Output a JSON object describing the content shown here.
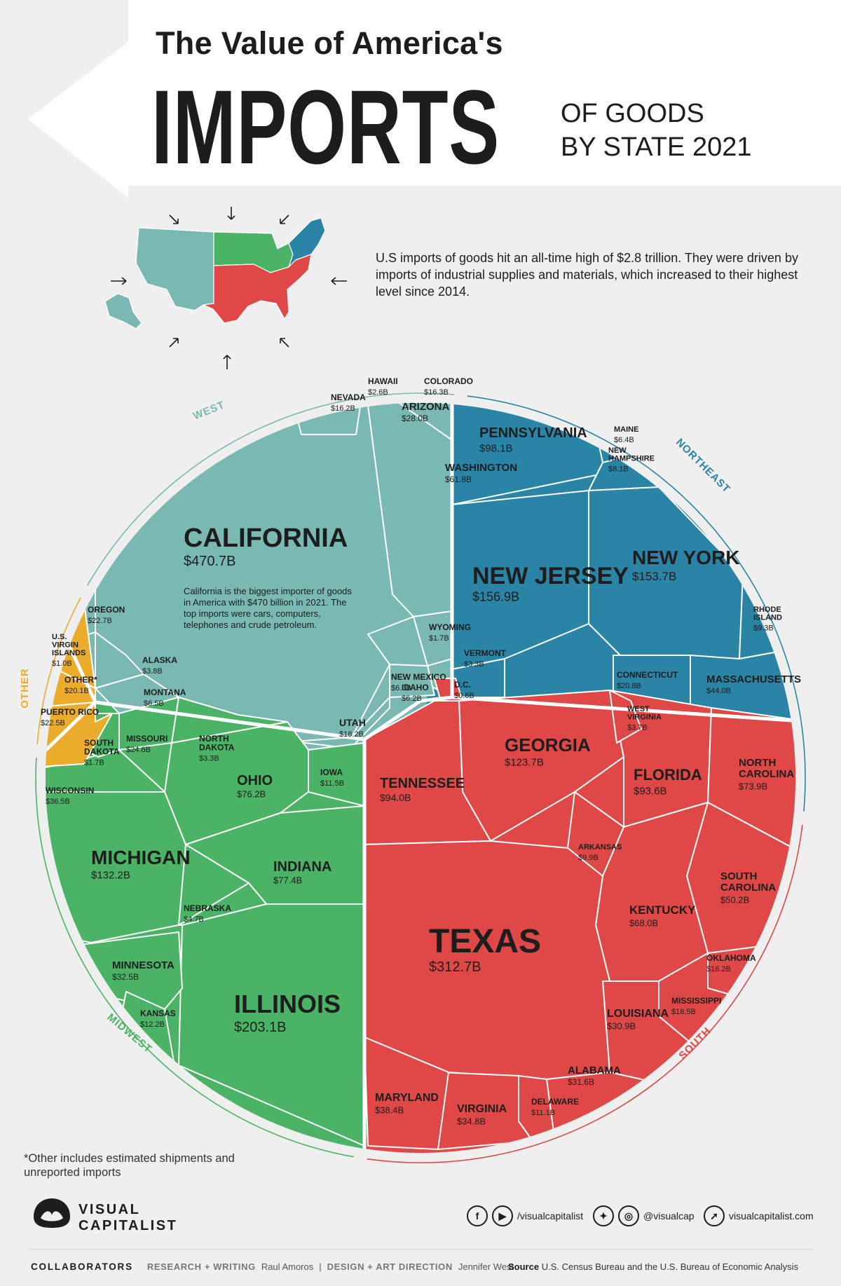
{
  "header": {
    "line1": "The Value of America's",
    "big": "IMPORTS",
    "sub1": "OF GOODS",
    "sub2": "BY STATE 2021"
  },
  "intro": {
    "text": "U.S imports of goods hit an all-time high of $2.8 trillion. They were driven by imports of industrial supplies and materials, which increased to their highest level since 2014."
  },
  "colors": {
    "west": "#7ab8b3",
    "northeast": "#2a84a6",
    "midwest": "#4bb366",
    "south": "#e04848",
    "other": "#eaac2a",
    "banner": "#ffffff",
    "background": "#efefef"
  },
  "chart_data": {
    "type": "voronoi-treemap",
    "unit": "USD billions",
    "regions": [
      {
        "name": "WEST",
        "color": "#7ab8b3",
        "states": [
          {
            "name": "CALIFORNIA",
            "label": "$470.7B",
            "value": 470.7
          },
          {
            "name": "WASHINGTON",
            "label": "$61.8B",
            "value": 61.8
          },
          {
            "name": "ARIZONA",
            "label": "$28.0B",
            "value": 28.0
          },
          {
            "name": "OREGON",
            "label": "$22.7B",
            "value": 22.7
          },
          {
            "name": "UTAH",
            "label": "$18.2B",
            "value": 18.2
          },
          {
            "name": "NEVADA",
            "label": "$16.2B",
            "value": 16.2
          },
          {
            "name": "COLORADO",
            "label": "$16.3B",
            "value": 16.3
          },
          {
            "name": "MONTANA",
            "label": "$6.5B",
            "value": 6.5
          },
          {
            "name": "IDAHO",
            "label": "$6.2B",
            "value": 6.2
          },
          {
            "name": "NEW MEXICO",
            "label": "$6.0B",
            "value": 6.0
          },
          {
            "name": "ALASKA",
            "label": "$3.8B",
            "value": 3.8
          },
          {
            "name": "HAWAII",
            "label": "$2.6B",
            "value": 2.6
          },
          {
            "name": "WYOMING",
            "label": "$1.7B",
            "value": 1.7
          }
        ]
      },
      {
        "name": "NORTHEAST",
        "color": "#2a84a6",
        "states": [
          {
            "name": "NEW JERSEY",
            "label": "$156.9B",
            "value": 156.9
          },
          {
            "name": "NEW YORK",
            "label": "$153.7B",
            "value": 153.7
          },
          {
            "name": "PENNSYLVANIA",
            "label": "$98.1B",
            "value": 98.1
          },
          {
            "name": "MASSACHUSETTS",
            "label": "$44.0B",
            "value": 44.0
          },
          {
            "name": "CONNECTICUT",
            "label": "$20.8B",
            "value": 20.8
          },
          {
            "name": "RHODE ISLAND",
            "label": "$9.3B",
            "value": 9.3
          },
          {
            "name": "NEW HAMPSHIRE",
            "label": "$8.1B",
            "value": 8.1
          },
          {
            "name": "MAINE",
            "label": "$6.4B",
            "value": 6.4
          },
          {
            "name": "VERMONT",
            "label": "$3.3B",
            "value": 3.3
          }
        ]
      },
      {
        "name": "SOUTH",
        "color": "#e04848",
        "states": [
          {
            "name": "TEXAS",
            "label": "$312.7B",
            "value": 312.7
          },
          {
            "name": "GEORGIA",
            "label": "$123.7B",
            "value": 123.7
          },
          {
            "name": "TENNESSEE",
            "label": "$94.0B",
            "value": 94.0
          },
          {
            "name": "FLORIDA",
            "label": "$93.6B",
            "value": 93.6
          },
          {
            "name": "NORTH CAROLINA",
            "label": "$73.9B",
            "value": 73.9
          },
          {
            "name": "KENTUCKY",
            "label": "$68.0B",
            "value": 68.0
          },
          {
            "name": "SOUTH CAROLINA",
            "label": "$50.2B",
            "value": 50.2
          },
          {
            "name": "MARYLAND",
            "label": "$38.4B",
            "value": 38.4
          },
          {
            "name": "VIRGINIA",
            "label": "$34.8B",
            "value": 34.8
          },
          {
            "name": "ALABAMA",
            "label": "$31.6B",
            "value": 31.6
          },
          {
            "name": "LOUISIANA",
            "label": "$30.9B",
            "value": 30.9
          },
          {
            "name": "MISSISSIPPI",
            "label": "$18.5B",
            "value": 18.5
          },
          {
            "name": "OKLAHOMA",
            "label": "$16.2B",
            "value": 16.2
          },
          {
            "name": "DELAWARE",
            "label": "$11.1B",
            "value": 11.1
          },
          {
            "name": "ARKANSAS",
            "label": "$9.9B",
            "value": 9.9
          },
          {
            "name": "WEST VIRGINIA",
            "label": "$3.7B",
            "value": 3.7
          },
          {
            "name": "D.C.",
            "label": "$0.6B",
            "value": 0.6
          }
        ]
      },
      {
        "name": "MIDWEST",
        "color": "#4bb366",
        "states": [
          {
            "name": "ILLINOIS",
            "label": "$203.1B",
            "value": 203.1
          },
          {
            "name": "MICHIGAN",
            "label": "$132.2B",
            "value": 132.2
          },
          {
            "name": "INDIANA",
            "label": "$77.4B",
            "value": 77.4
          },
          {
            "name": "OHIO",
            "label": "$76.2B",
            "value": 76.2
          },
          {
            "name": "WISCONSIN",
            "label": "$36.5B",
            "value": 36.5
          },
          {
            "name": "MINNESOTA",
            "label": "$32.5B",
            "value": 32.5
          },
          {
            "name": "MISSOURI",
            "label": "$24.6B",
            "value": 24.6
          },
          {
            "name": "KANSAS",
            "label": "$12.2B",
            "value": 12.2
          },
          {
            "name": "IOWA",
            "label": "$11.5B",
            "value": 11.5
          },
          {
            "name": "NEBRASKA",
            "label": "$4.7B",
            "value": 4.7
          },
          {
            "name": "NORTH DAKOTA",
            "label": "$3.3B",
            "value": 3.3
          },
          {
            "name": "SOUTH DAKOTA",
            "label": "$1.7B",
            "value": 1.7
          }
        ]
      },
      {
        "name": "OTHER",
        "color": "#eaac2a",
        "states": [
          {
            "name": "PUERTO RICO",
            "label": "$22.5B",
            "value": 22.5
          },
          {
            "name": "OTHER*",
            "label": "$20.1B",
            "value": 20.1
          },
          {
            "name": "U.S. VIRGIN ISLANDS",
            "label": "$1.0B",
            "value": 1.0
          }
        ]
      }
    ],
    "annotation": "California is the biggest importer of goods in America with $470 billion in 2021. The top imports were cars, computers, telephones and crude petroleum."
  },
  "footnote": "*Other includes estimated shipments and unreported imports",
  "footer": {
    "logo_line1": "VISUAL",
    "logo_line2": "CAPITALIST",
    "facebook_handle": "/visualcapitalist",
    "twitter_handle": "@visualcap",
    "website": "visualcapitalist.com",
    "collaborators_label": "COLLABORATORS",
    "research_label": "RESEARCH + WRITING",
    "research_name": "Raul Amoros",
    "separator": "|",
    "design_label": "DESIGN + ART DIRECTION",
    "design_name": "Jennifer West",
    "source_label": "Source",
    "source_text": "U.S. Census Bureau and the U.S. Bureau of Economic Analysis"
  }
}
